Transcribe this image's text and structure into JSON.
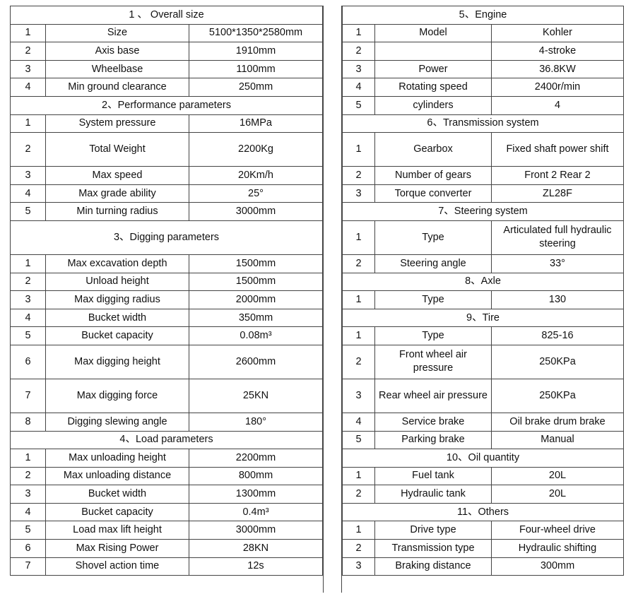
{
  "left": [
    {
      "title": "1 、 Overall size",
      "rows": [
        [
          "1",
          "Size",
          "5100*1350*2580mm"
        ],
        [
          "2",
          "Axis base",
          "1910mm"
        ],
        [
          "3",
          "Wheelbase",
          "1100mm"
        ],
        [
          "4",
          "Min ground clearance",
          "250mm"
        ]
      ]
    },
    {
      "title": "2、Performance parameters",
      "rows": [
        [
          "1",
          "System pressure",
          "16MPa"
        ],
        [
          "2",
          "Total Weight",
          "2200Kg"
        ],
        [
          "3",
          "Max speed",
          "20Km/h"
        ],
        [
          "4",
          "Max grade ability",
          "25°"
        ],
        [
          "5",
          "Min turning radius",
          "3000mm"
        ]
      ]
    },
    {
      "title": "3、Digging parameters",
      "rows": [
        [
          "1",
          "Max excavation depth",
          "1500mm"
        ],
        [
          "2",
          "Unload height",
          "1500mm"
        ],
        [
          "3",
          "Max digging radius",
          "2000mm"
        ],
        [
          "4",
          "Bucket width",
          "350mm"
        ],
        [
          "5",
          "Bucket capacity",
          "0.08m³"
        ],
        [
          "6",
          "Max digging height",
          "2600mm"
        ],
        [
          "7",
          "Max digging force",
          "25KN"
        ],
        [
          "8",
          "Digging slewing angle",
          "180°"
        ]
      ]
    },
    {
      "title": "4、Load parameters",
      "rows": [
        [
          "1",
          "Max unloading height",
          "2200mm"
        ],
        [
          "2",
          "Max unloading distance",
          "800mm"
        ],
        [
          "3",
          "Bucket width",
          "1300mm"
        ],
        [
          "4",
          "Bucket capacity",
          "0.4m³"
        ],
        [
          "5",
          "Load max lift height",
          "3000mm"
        ],
        [
          "6",
          "Max Rising Power",
          "28KN"
        ],
        [
          "7",
          "Shovel action time",
          "12s"
        ]
      ]
    }
  ],
  "right": [
    {
      "title": "5、Engine",
      "rows": [
        [
          "1",
          "Model",
          "Kohler"
        ],
        [
          "2",
          "",
          "4-stroke"
        ],
        [
          "3",
          "Power",
          "36.8KW"
        ],
        [
          "4",
          "Rotating speed",
          "2400r/min"
        ],
        [
          "5",
          "cylinders",
          "4"
        ]
      ]
    },
    {
      "title": "6、Transmission system",
      "rows": [
        [
          "1",
          "Gearbox",
          "Fixed shaft power shift"
        ],
        [
          "2",
          "Number of gears",
          "Front 2 Rear 2"
        ],
        [
          "3",
          "Torque converter",
          "ZL28F"
        ]
      ]
    },
    {
      "title": "7、Steering system",
      "rows": [
        [
          "1",
          "Type",
          "Articulated full hydraulic steering"
        ],
        [
          "2",
          "Steering angle",
          "33°"
        ]
      ]
    },
    {
      "title": "8、Axle",
      "rows": [
        [
          "1",
          "Type",
          "130"
        ]
      ]
    },
    {
      "title": "9、Tire",
      "rows": [
        [
          "1",
          "Type",
          "825-16"
        ],
        [
          "2",
          "Front wheel air pressure",
          "250KPa"
        ],
        [
          "3",
          "Rear wheel air pressure",
          "250KPa"
        ],
        [
          "4",
          "Service brake",
          "Oil brake drum brake"
        ],
        [
          "5",
          "Parking brake",
          "Manual"
        ]
      ]
    },
    {
      "title": "10、Oil quantity",
      "rows": [
        [
          "1",
          "Fuel tank",
          "20L"
        ],
        [
          "2",
          "Hydraulic tank",
          "20L"
        ]
      ]
    },
    {
      "title": "11、Others",
      "rows": [
        [
          "1",
          "Drive type",
          "Four-wheel drive"
        ],
        [
          "2",
          "Transmission type",
          "Hydraulic shifting"
        ],
        [
          "3",
          "Braking distance",
          "300mm"
        ]
      ]
    }
  ]
}
